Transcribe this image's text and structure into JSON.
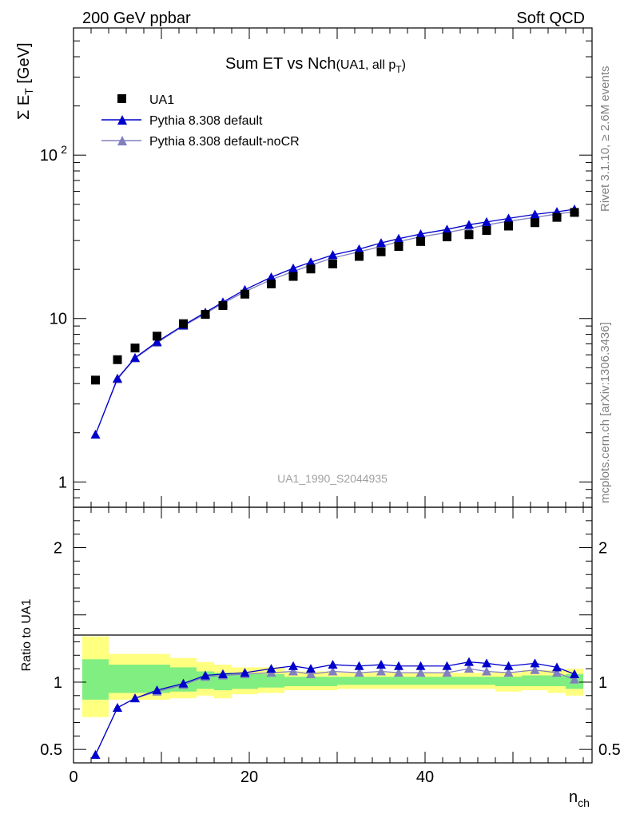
{
  "header": {
    "left": "200 GeV ppbar",
    "right": "Soft QCD"
  },
  "side_labels": {
    "rivet": "Rivet 3.1.10, ≥ 2.6M events",
    "mcplots": "mcplots.cern.ch [arXiv:1306.3436]"
  },
  "chart_data": [
    {
      "type": "scatter",
      "title": "Sum ET vs Nch",
      "title_suffix": "(UA1, all p",
      "title_suffix_sub": "T",
      "title_suffix_close": ")",
      "ylabel": "Σ E",
      "ylabel_sub": "T",
      "ylabel_unit": " [GeV]",
      "yscale": "log",
      "xlim": [
        0,
        59
      ],
      "ylim": [
        0.7,
        600
      ],
      "yticks": [
        {
          "value": 1,
          "label": "1"
        },
        {
          "value": 10,
          "label": "10"
        },
        {
          "value": 100,
          "label": "10",
          "sup": "2"
        }
      ],
      "watermark": "UA1_1990_S2044935",
      "legend_position": "top-left",
      "series": [
        {
          "name": "UA1",
          "color": "#000000",
          "marker": "square",
          "x": [
            2.5,
            5,
            7,
            9.5,
            12.5,
            15,
            17,
            19.5,
            22.5,
            25,
            27,
            29.5,
            32.5,
            35,
            37,
            39.5,
            42.5,
            45,
            47,
            49.5,
            52.5,
            55,
            57
          ],
          "values": [
            4.2,
            5.6,
            6.6,
            7.8,
            9.3,
            10.6,
            12.0,
            14.1,
            16.3,
            18.1,
            20.1,
            21.6,
            24.0,
            25.6,
            27.6,
            29.6,
            31.6,
            32.6,
            34.6,
            36.8,
            38.6,
            41.6,
            44.6
          ]
        },
        {
          "name": "Pythia 8.308 default",
          "color": "#0000cc",
          "marker": "triangle",
          "x": [
            2.5,
            5,
            7,
            9.5,
            12.5,
            15,
            17,
            19.5,
            22.5,
            25,
            27,
            29.5,
            32.5,
            35,
            37,
            39.5,
            42.5,
            45,
            47,
            49.5,
            52.5,
            55,
            57
          ],
          "values": [
            1.95,
            4.3,
            5.75,
            7.2,
            9.1,
            10.9,
            12.6,
            15.0,
            17.9,
            20.3,
            22.1,
            24.5,
            26.6,
            29.0,
            30.8,
            32.9,
            35.1,
            37.5,
            39.0,
            41.0,
            43.4,
            45.0,
            46.6
          ]
        },
        {
          "name": "Pythia 8.308 default-noCR",
          "color": "#8080c0",
          "marker": "triangle",
          "x": [
            2.5,
            5,
            7,
            9.5,
            12.5,
            15,
            17,
            19.5,
            22.5,
            25,
            27,
            29.5,
            32.5,
            35,
            37,
            39.5,
            42.5,
            45,
            47,
            49.5,
            52.5,
            55,
            57
          ],
          "values": [
            1.95,
            4.25,
            5.7,
            7.1,
            9.0,
            10.7,
            12.4,
            14.6,
            17.3,
            19.4,
            21.2,
            23.5,
            25.6,
            27.6,
            29.6,
            31.6,
            33.6,
            35.6,
            37.4,
            39.4,
            41.6,
            43.6,
            45.2
          ]
        }
      ]
    },
    {
      "type": "line",
      "ylabel": "Ratio to UA1",
      "xlabel": "n",
      "xlabel_sub": "ch",
      "xlim": [
        0,
        59
      ],
      "ylim": [
        0.4,
        2.3
      ],
      "yticks": [
        {
          "value": 0.5,
          "label": "0.5"
        },
        {
          "value": 1,
          "label": "1"
        },
        {
          "value": 2,
          "label": "2"
        }
      ],
      "xticks": [
        {
          "value": 0,
          "label": "0"
        },
        {
          "value": 20,
          "label": "20"
        },
        {
          "value": 40,
          "label": "40"
        }
      ],
      "bands": {
        "yellow_color": "#ffff80",
        "green_color": "#80ee80",
        "bins": [
          {
            "x0": 1,
            "x1": 4,
            "y_lo": 0.74,
            "y_hi": 1.34,
            "g_lo": 0.87,
            "g_hi": 1.17
          },
          {
            "x0": 4,
            "x1": 11,
            "y_lo": 0.87,
            "y_hi": 1.21,
            "g_lo": 0.92,
            "g_hi": 1.13
          },
          {
            "x0": 11,
            "x1": 14,
            "y_lo": 0.88,
            "y_hi": 1.18,
            "g_lo": 0.93,
            "g_hi": 1.11
          },
          {
            "x0": 14,
            "x1": 16,
            "y_lo": 0.9,
            "y_hi": 1.15,
            "g_lo": 0.95,
            "g_hi": 1.08
          },
          {
            "x0": 16,
            "x1": 18,
            "y_lo": 0.88,
            "y_hi": 1.13,
            "g_lo": 0.94,
            "g_hi": 1.07
          },
          {
            "x0": 18,
            "x1": 21,
            "y_lo": 0.91,
            "y_hi": 1.11,
            "g_lo": 0.95,
            "g_hi": 1.06
          },
          {
            "x0": 21,
            "x1": 24,
            "y_lo": 0.92,
            "y_hi": 1.11,
            "g_lo": 0.96,
            "g_hi": 1.06
          },
          {
            "x0": 24,
            "x1": 30,
            "y_lo": 0.94,
            "y_hi": 1.08,
            "g_lo": 0.97,
            "g_hi": 1.04
          },
          {
            "x0": 30,
            "x1": 48,
            "y_lo": 0.95,
            "y_hi": 1.07,
            "g_lo": 0.98,
            "g_hi": 1.04
          },
          {
            "x0": 48,
            "x1": 51,
            "y_lo": 0.93,
            "y_hi": 1.07,
            "g_lo": 0.97,
            "g_hi": 1.04
          },
          {
            "x0": 51,
            "x1": 54,
            "y_lo": 0.94,
            "y_hi": 1.09,
            "g_lo": 0.97,
            "g_hi": 1.05
          },
          {
            "x0": 54,
            "x1": 56,
            "y_lo": 0.92,
            "y_hi": 1.09,
            "g_lo": 0.97,
            "g_hi": 1.05
          },
          {
            "x0": 56,
            "x1": 58,
            "y_lo": 0.9,
            "y_hi": 1.1,
            "g_lo": 0.95,
            "g_hi": 1.06
          }
        ]
      },
      "series": [
        {
          "name": "Pythia 8.308 default",
          "color": "#0000cc",
          "marker": "triangle",
          "x": [
            2.5,
            5,
            7,
            9.5,
            12.5,
            15,
            17,
            19.5,
            22.5,
            25,
            27,
            29.5,
            32.5,
            35,
            37,
            39.5,
            42.5,
            45,
            47,
            49.5,
            52.5,
            55,
            57
          ],
          "values": [
            0.46,
            0.81,
            0.88,
            0.94,
            0.99,
            1.05,
            1.06,
            1.07,
            1.1,
            1.12,
            1.1,
            1.13,
            1.12,
            1.13,
            1.12,
            1.12,
            1.12,
            1.15,
            1.14,
            1.12,
            1.14,
            1.11,
            1.06
          ]
        },
        {
          "name": "Pythia 8.308 default-noCR",
          "color": "#8080c0",
          "marker": "triangle",
          "x": [
            2.5,
            5,
            7,
            9.5,
            12.5,
            15,
            17,
            19.5,
            22.5,
            25,
            27,
            29.5,
            32.5,
            35,
            37,
            39.5,
            42.5,
            45,
            47,
            49.5,
            52.5,
            55,
            57
          ],
          "values": [
            0.46,
            0.81,
            0.88,
            0.93,
            0.98,
            1.04,
            1.05,
            1.06,
            1.07,
            1.08,
            1.06,
            1.08,
            1.07,
            1.08,
            1.07,
            1.07,
            1.07,
            1.1,
            1.08,
            1.07,
            1.09,
            1.07,
            1.02
          ]
        }
      ]
    }
  ]
}
